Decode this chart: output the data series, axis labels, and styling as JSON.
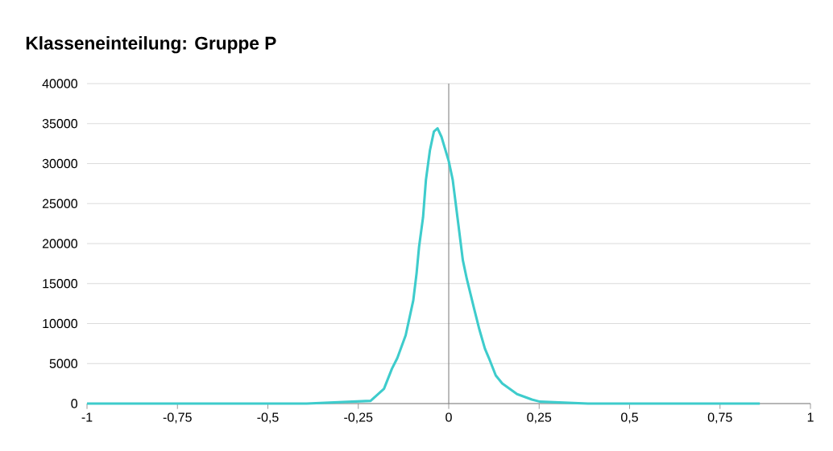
{
  "chart_data": {
    "type": "line",
    "title": "Klasseneinteilung: Gruppe P",
    "x": [
      -1,
      -0.6,
      -0.393,
      -0.216,
      -0.179,
      -0.157,
      -0.142,
      -0.119,
      -0.098,
      -0.089,
      -0.082,
      -0.071,
      -0.063,
      -0.052,
      -0.041,
      -0.031,
      -0.02,
      0.0,
      0.011,
      0.026,
      0.039,
      0.05,
      0.07,
      0.085,
      0.1,
      0.111,
      0.13,
      0.148,
      0.189,
      0.23,
      0.252,
      0.385,
      0.86
    ],
    "series": [
      {
        "color": "#3ecccc",
        "values": [
          0,
          0,
          0,
          340,
          1850,
          4360,
          5700,
          8540,
          12900,
          16250,
          19600,
          23290,
          27980,
          31660,
          34010,
          34410,
          33340,
          30320,
          27980,
          22610,
          17930,
          15580,
          11900,
          9220,
          6870,
          5700,
          3520,
          2510,
          1180,
          500,
          240,
          0,
          0
        ]
      }
    ],
    "xlim": [
      -1,
      1
    ],
    "ylim": [
      0,
      40000
    ],
    "xticks": [
      -1,
      {
        "value": -0.75,
        "label": "-0,75"
      },
      {
        "value": -0.5,
        "label": "-0,5"
      },
      {
        "value": -0.25,
        "label": "-0,25"
      },
      0,
      {
        "value": 0.25,
        "label": "0,25"
      },
      {
        "value": 0.5,
        "label": "0,5"
      },
      {
        "value": 0.75,
        "label": "0,75"
      },
      1
    ],
    "yticks": [
      0,
      5000,
      10000,
      15000,
      20000,
      25000,
      30000,
      35000,
      40000
    ],
    "grid": "y",
    "marker": "none",
    "line_style": "solid"
  }
}
